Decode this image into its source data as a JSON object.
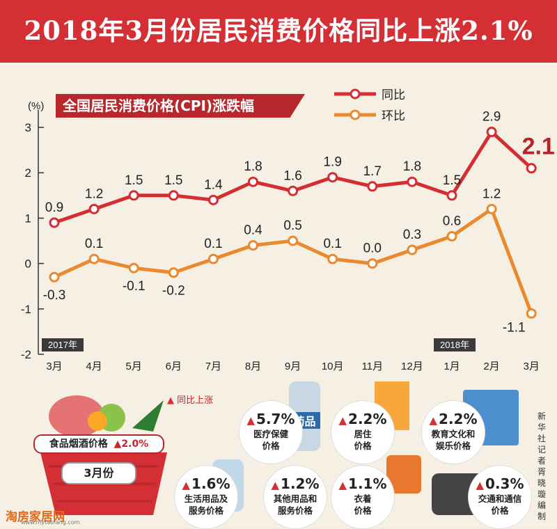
{
  "title": "2018年3月份居民消费价格同比上涨2.1%",
  "chart_data": {
    "type": "line",
    "title": "全国居民消费价格(CPI)涨跌幅",
    "ylabel": "(%)",
    "ylim": [
      -2,
      3
    ],
    "yticks": [
      "3",
      "2",
      "1",
      "0",
      "-1",
      "-2"
    ],
    "categories": [
      "3月",
      "4月",
      "5月",
      "6月",
      "7月",
      "8月",
      "9月",
      "10月",
      "11月",
      "12月",
      "1月",
      "2月",
      "3月"
    ],
    "year_labels": [
      "2017年",
      "2018年"
    ],
    "series": [
      {
        "name": "同比",
        "color": "#d42e33",
        "values": [
          0.9,
          1.2,
          1.5,
          1.5,
          1.4,
          1.8,
          1.6,
          1.9,
          1.7,
          1.8,
          1.5,
          2.9,
          2.1
        ],
        "labels": [
          "0.9",
          "1.2",
          "1.5",
          "1.5",
          "1.4",
          "1.8",
          "1.6",
          "1.9",
          "1.7",
          "1.8",
          "1.5",
          "2.9",
          "2.1"
        ]
      },
      {
        "name": "环比",
        "color": "#e98a2e",
        "values": [
          -0.3,
          0.1,
          -0.1,
          -0.2,
          0.1,
          0.4,
          0.5,
          0.1,
          0.0,
          0.3,
          0.6,
          1.2,
          -1.1
        ],
        "labels": [
          "-0.3",
          "0.1",
          "-0.1",
          "-0.2",
          "0.1",
          "0.4",
          "0.5",
          "0.1",
          "0.0",
          "0.3",
          "0.6",
          "1.2",
          "-1.1"
        ]
      }
    ]
  },
  "lower": {
    "legend": "同比上涨",
    "basket": {
      "label": "食品烟酒价格",
      "value": "▲2.0%",
      "month": "3月份"
    },
    "items": [
      {
        "pct": "5.7%",
        "line1": "医疗保健",
        "line2": "价格"
      },
      {
        "pct": "2.2%",
        "line1": "居住",
        "line2": "价格"
      },
      {
        "pct": "2.2%",
        "line1": "教育文化和",
        "line2": "娱乐价格"
      },
      {
        "pct": "1.6%",
        "line1": "生活用品及",
        "line2": "服务价格"
      },
      {
        "pct": "1.2%",
        "line1": "其他用品和",
        "line2": "服务价格"
      },
      {
        "pct": "1.1%",
        "line1": "衣着",
        "line2": "价格"
      },
      {
        "pct": "0.3%",
        "line1": "交通和通信",
        "line2": "价格"
      }
    ],
    "medicine_text": "药品",
    "credit": "新华社记者 胥晓璇 编制",
    "watermark": "淘房家居网",
    "watermark_url": "www.mytaofang.com"
  },
  "colors": {
    "red": "#d52f36",
    "orange": "#e98a2e",
    "dark": "#333333"
  }
}
